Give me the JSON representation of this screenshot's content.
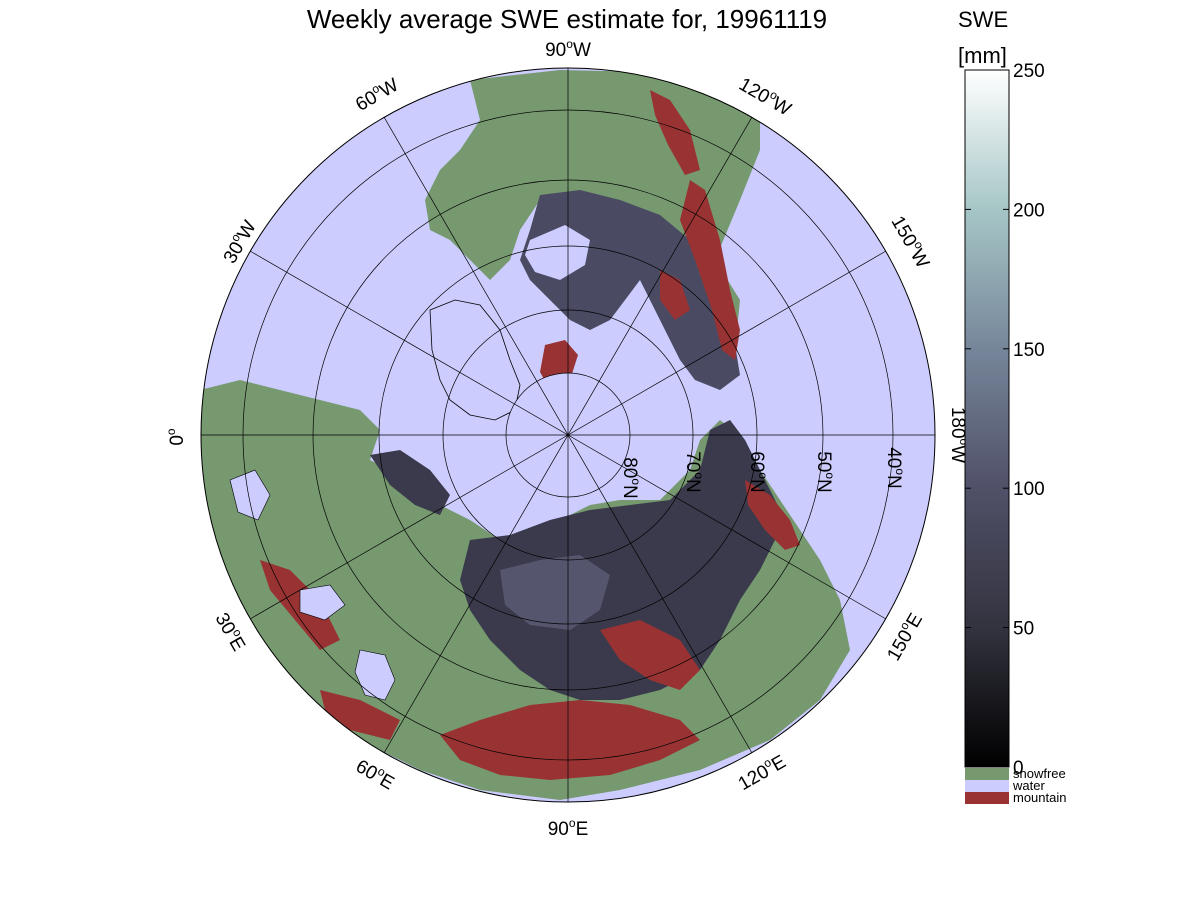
{
  "title": "Weekly average SWE estimate for, 19961119",
  "map": {
    "projection": "polar stereographic, north pole",
    "colors": {
      "water": "#ccccff",
      "snowfree": "#76996f",
      "mountain": "#993333",
      "snow_dark": "#2a2a36",
      "snow_mid": "#4a4a62",
      "coast": "#000000"
    },
    "meridian_labels": [
      {
        "id": "lon-90w",
        "lon": "90",
        "hemi": "W"
      },
      {
        "id": "lon-60w",
        "lon": "60",
        "hemi": "W"
      },
      {
        "id": "lon-30w",
        "lon": "30",
        "hemi": "W"
      },
      {
        "id": "lon-0",
        "lon": "0",
        "hemi": ""
      },
      {
        "id": "lon-30e",
        "lon": "30",
        "hemi": "E"
      },
      {
        "id": "lon-60e",
        "lon": "60",
        "hemi": "E"
      },
      {
        "id": "lon-90e",
        "lon": "90",
        "hemi": "E"
      },
      {
        "id": "lon-120e",
        "lon": "120",
        "hemi": "E"
      },
      {
        "id": "lon-150e",
        "lon": "150",
        "hemi": "E"
      },
      {
        "id": "lon-180w",
        "lon": "180",
        "hemi": "W"
      },
      {
        "id": "lon-150w",
        "lon": "150",
        "hemi": "W"
      },
      {
        "id": "lon-120w",
        "lon": "120",
        "hemi": "W"
      }
    ],
    "parallel_labels": [
      {
        "id": "lat-80n",
        "lat": "80",
        "hemi": "N"
      },
      {
        "id": "lat-70n",
        "lat": "70",
        "hemi": "N"
      },
      {
        "id": "lat-60n",
        "lat": "60",
        "hemi": "N"
      },
      {
        "id": "lat-50n",
        "lat": "50",
        "hemi": "N"
      },
      {
        "id": "lat-40n",
        "lat": "40",
        "hemi": "N"
      }
    ]
  },
  "colorbar": {
    "label_line1": "SWE",
    "label_line2": "[mm]",
    "ticks": [
      "0",
      "50",
      "100",
      "150",
      "200",
      "250"
    ],
    "range": [
      0,
      250
    ],
    "legend": [
      {
        "label": "snowfree",
        "color": "#76996f"
      },
      {
        "label": "water",
        "color": "#ccccff"
      },
      {
        "label": "mountain",
        "color": "#993333"
      }
    ]
  }
}
